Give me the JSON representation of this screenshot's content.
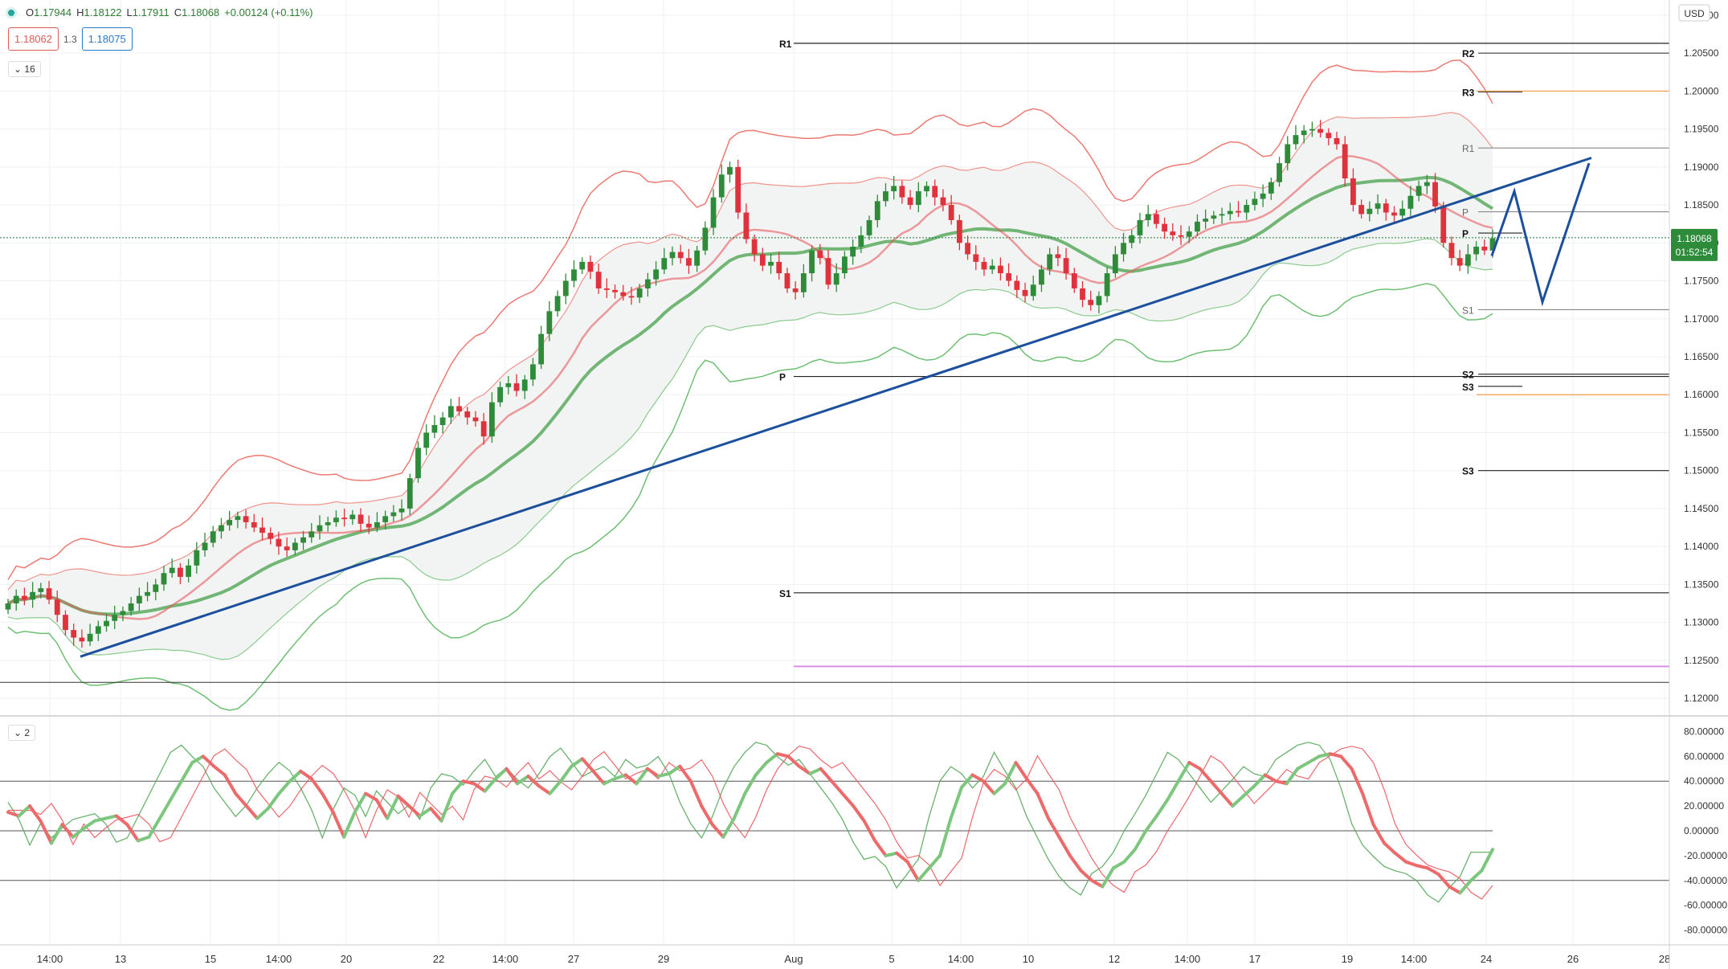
{
  "legend": {
    "open_label": "O",
    "open": "1.17944",
    "high_label": "H",
    "high": "1.18122",
    "low_label": "L",
    "low": "1.17911",
    "close_label": "C",
    "close": "1.18068",
    "change": "+0.00124 (+0.11%)",
    "bid": "1.18062",
    "spread": "1.3",
    "ask": "1.18075",
    "indicator_count": "16",
    "oscillator_count": "2"
  },
  "price_axis": {
    "currency": "USD",
    "ticks": [
      "1.21000",
      "1.20500",
      "1.20000",
      "1.19500",
      "1.19000",
      "1.18500",
      "1.18000",
      "1.17500",
      "1.17000",
      "1.16500",
      "1.16000",
      "1.15500",
      "1.15000",
      "1.14500",
      "1.14000",
      "1.13500",
      "1.13000",
      "1.12500",
      "1.12000"
    ],
    "last_price": "1.18068",
    "countdown": "01:52:54"
  },
  "osc_axis": {
    "ticks": [
      "80.00000",
      "60.00000",
      "40.00000",
      "20.00000",
      "0.00000",
      "-20.00000",
      "-40.00000",
      "-60.00000",
      "-80.00000"
    ]
  },
  "time_axis": {
    "labels": [
      "14:00",
      "13",
      "15",
      "14:00",
      "20",
      "22",
      "14:00",
      "27",
      "29",
      "Aug",
      "5",
      "14:00",
      "10",
      "12",
      "14:00",
      "17",
      "19",
      "14:00",
      "24",
      "26",
      "28"
    ]
  },
  "pivot_labels": {
    "left": [
      "R1",
      "P",
      "S1"
    ],
    "right": [
      "R2",
      "R3",
      "R1",
      "P",
      "P",
      "S1",
      "S2",
      "S3",
      "S3"
    ]
  },
  "colors": {
    "up": "#2e8b3a",
    "down": "#e0323c",
    "trend": "#1c4f9c",
    "upper_band": "#ec7a72",
    "lower_band": "#6fbf73",
    "ma_red": "#e8585c",
    "ma_green": "#5aaa5e"
  },
  "chart_data": [
    {
      "type": "candlestick",
      "title": "",
      "ylim": [
        1.118,
        1.212
      ],
      "price_ticks": [
        1.21,
        1.205,
        1.2,
        1.195,
        1.19,
        1.185,
        1.18,
        1.175,
        1.17,
        1.165,
        1.16,
        1.155,
        1.15,
        1.145,
        1.14,
        1.135,
        1.13,
        1.125,
        1.12
      ],
      "last_close": 1.18068,
      "close_series": [
        1.1325,
        1.1335,
        1.133,
        1.134,
        1.1345,
        1.133,
        1.131,
        1.129,
        1.128,
        1.1275,
        1.1285,
        1.1295,
        1.1302,
        1.131,
        1.1315,
        1.1325,
        1.1335,
        1.134,
        1.135,
        1.1365,
        1.1372,
        1.136,
        1.1375,
        1.1395,
        1.1405,
        1.142,
        1.1428,
        1.1435,
        1.144,
        1.1432,
        1.1425,
        1.1418,
        1.141,
        1.14,
        1.1395,
        1.1405,
        1.1412,
        1.142,
        1.1428,
        1.1432,
        1.1438,
        1.1436,
        1.1442,
        1.143,
        1.1425,
        1.1432,
        1.144,
        1.1445,
        1.145,
        1.149,
        1.153,
        1.155,
        1.156,
        1.157,
        1.1585,
        1.1578,
        1.157,
        1.1565,
        1.1545,
        1.159,
        1.161,
        1.1615,
        1.1605,
        1.162,
        1.164,
        1.168,
        1.171,
        1.173,
        1.175,
        1.1765,
        1.1775,
        1.1762,
        1.174,
        1.1738,
        1.1735,
        1.173,
        1.1728,
        1.174,
        1.1752,
        1.1765,
        1.178,
        1.1788,
        1.178,
        1.177,
        1.179,
        1.182,
        1.186,
        1.189,
        1.19,
        1.184,
        1.1805,
        1.1785,
        1.177,
        1.1775,
        1.176,
        1.174,
        1.1735,
        1.176,
        1.179,
        1.178,
        1.1745,
        1.176,
        1.1782,
        1.1795,
        1.181,
        1.183,
        1.1855,
        1.1868,
        1.1875,
        1.186,
        1.185,
        1.1868,
        1.1875,
        1.186,
        1.185,
        1.183,
        1.18,
        1.1785,
        1.1775,
        1.1765,
        1.177,
        1.176,
        1.175,
        1.1738,
        1.173,
        1.1745,
        1.1765,
        1.1785,
        1.178,
        1.176,
        1.174,
        1.1725,
        1.1718,
        1.173,
        1.176,
        1.1785,
        1.18,
        1.181,
        1.183,
        1.1838,
        1.1825,
        1.1815,
        1.181,
        1.1808,
        1.1815,
        1.1828,
        1.1832,
        1.1836,
        1.1838,
        1.1842,
        1.184,
        1.185,
        1.1858,
        1.1865,
        1.188,
        1.1905,
        1.193,
        1.1942,
        1.1948,
        1.195,
        1.1945,
        1.1938,
        1.193,
        1.1885,
        1.185,
        1.1838,
        1.1845,
        1.1852,
        1.184,
        1.1836,
        1.1845,
        1.1862,
        1.1875,
        1.188,
        1.1848,
        1.18,
        1.178,
        1.177,
        1.1785,
        1.1795,
        1.179,
        1.1806
      ]
    },
    {
      "type": "line",
      "title": "",
      "ylim": [
        -90,
        90
      ],
      "levels": [
        40,
        0,
        -40
      ],
      "series": [
        {
          "values": [
            15,
            12,
            20,
            8,
            -10,
            5,
            -5,
            2,
            8,
            10,
            12,
            5,
            -8,
            -5,
            10,
            25,
            40,
            55,
            60,
            52,
            45,
            30,
            20,
            10,
            18,
            30,
            40,
            48,
            42,
            30,
            15,
            -5,
            15,
            30,
            25,
            10,
            28,
            20,
            12,
            18,
            8,
            30,
            40,
            38,
            32,
            42,
            50,
            38,
            44,
            36,
            30,
            40,
            52,
            58,
            48,
            38,
            42,
            45,
            38,
            50,
            44,
            46,
            52,
            40,
            20,
            5,
            -5,
            10,
            30,
            45,
            55,
            62,
            60,
            52,
            46,
            50,
            40,
            30,
            20,
            8,
            -8,
            -20,
            -18,
            -25,
            -40,
            -30,
            -20,
            10,
            35,
            45,
            40,
            30,
            38,
            55,
            42,
            30,
            10,
            -5,
            -20,
            -32,
            -40,
            -45,
            -30,
            -25,
            -15,
            0,
            12,
            25,
            40,
            55,
            50,
            40,
            30,
            20,
            28,
            36,
            45,
            40,
            38,
            50,
            55,
            60,
            62,
            60,
            50,
            30,
            5,
            -10,
            -18,
            -25,
            -28,
            -30,
            -35,
            -45,
            -50,
            -40,
            -32,
            -15
          ]
        }
      ]
    }
  ]
}
